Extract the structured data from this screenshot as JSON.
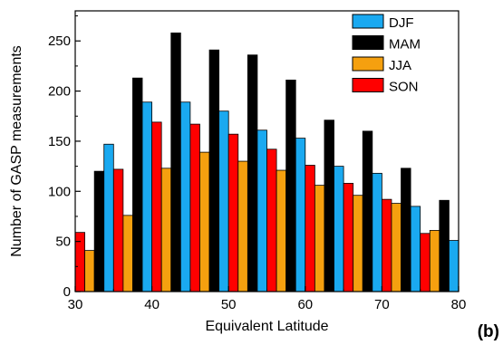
{
  "chart_data": {
    "type": "bar",
    "xlabel": "Equivalent Latitude",
    "ylabel": "Number of GASP measurements",
    "panel_label": "(b)",
    "xlim": [
      30,
      80
    ],
    "ylim": [
      0,
      280
    ],
    "xticks": [
      30,
      40,
      50,
      60,
      70,
      80
    ],
    "yticks": [
      0,
      50,
      100,
      150,
      200,
      250
    ],
    "bin_width": 5,
    "grid": false,
    "legend_position": "top-right",
    "bin_centers": [
      32.5,
      37.5,
      42.5,
      47.5,
      52.5,
      57.5,
      62.5,
      67.5,
      72.5,
      77.5
    ],
    "series": [
      {
        "name": "SON",
        "color": "#ff0000",
        "values": [
          59,
          122,
          169,
          167,
          157,
          142,
          126,
          108,
          92,
          58
        ]
      },
      {
        "name": "JJA",
        "color": "#f5a00f",
        "values": [
          41,
          76,
          123,
          139,
          130,
          121,
          106,
          96,
          88,
          61
        ]
      },
      {
        "name": "MAM",
        "color": "#000000",
        "values": [
          120,
          213,
          258,
          241,
          236,
          211,
          171,
          160,
          123,
          91
        ]
      },
      {
        "name": "DJF",
        "color": "#1aa9f0",
        "values": [
          147,
          189,
          189,
          180,
          161,
          153,
          125,
          118,
          85,
          51
        ]
      }
    ],
    "legend": [
      {
        "name": "DJF",
        "color": "#1aa9f0"
      },
      {
        "name": "MAM",
        "color": "#000000"
      },
      {
        "name": "JJA",
        "color": "#f5a00f"
      },
      {
        "name": "SON",
        "color": "#ff0000"
      }
    ]
  }
}
